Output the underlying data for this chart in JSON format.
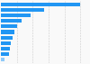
{
  "values": [
    100,
    55,
    37,
    26,
    20,
    17,
    15,
    13,
    11,
    10,
    5
  ],
  "bar_color": "#2196F3",
  "last_bar_color": "#90CAF9",
  "background_color": "#f9f9f9",
  "xlim": [
    0,
    110
  ],
  "grid_color": "#cccccc",
  "grid_positions": [
    20,
    40,
    60,
    80,
    100
  ]
}
